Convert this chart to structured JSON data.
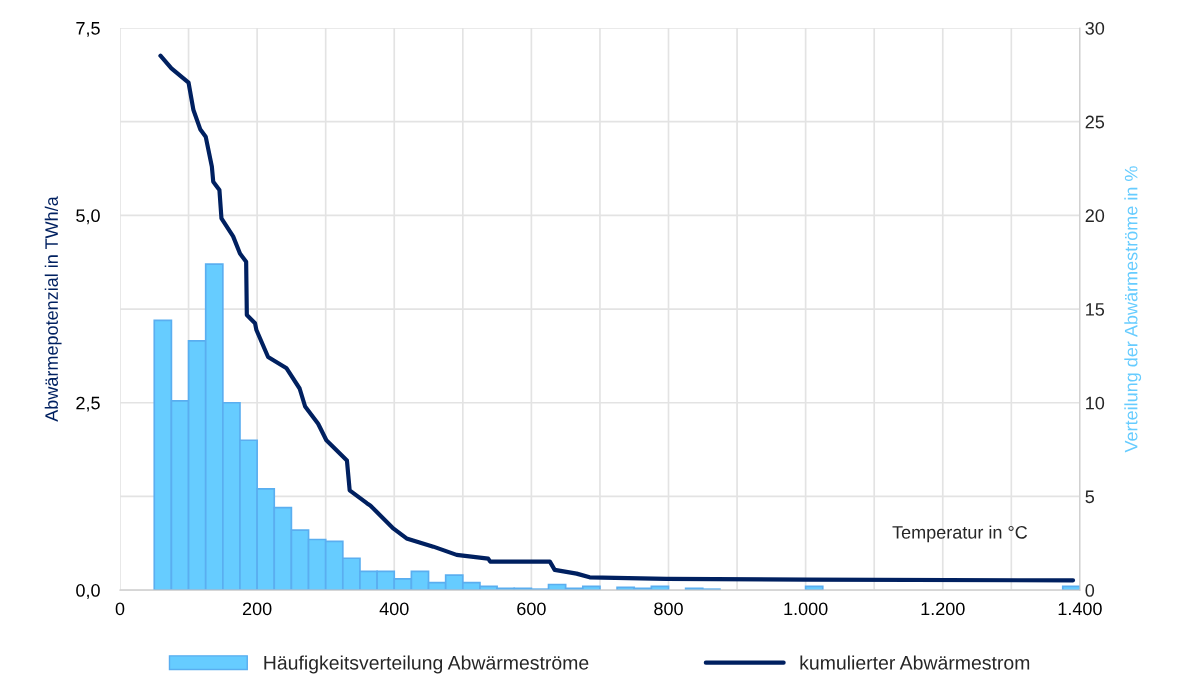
{
  "chart_data": {
    "type": "histogram",
    "ylabel": "Abwärmepotenzial in TWh/a",
    "y2label": "Verteilung der Abwärmeströme in %",
    "xlabel": "Temperatur in °C",
    "xlim": [
      0,
      1400
    ],
    "xticks": [
      0,
      {
        "value": 100,
        "label": null
      },
      200,
      {
        "value": 300,
        "label": null
      },
      400,
      {
        "value": 500,
        "label": null
      },
      600,
      {
        "value": 700,
        "label": null
      },
      800,
      {
        "value": 900,
        "label": null
      },
      {
        "value": 1000,
        "label": "1.000"
      },
      {
        "value": 1100,
        "label": null
      },
      {
        "value": 1200,
        "label": "1.200"
      },
      {
        "value": 1300,
        "label": null
      },
      {
        "value": 1400,
        "label": "1.400"
      }
    ],
    "ylim": [
      0,
      7.5
    ],
    "yticks": [
      {
        "value": 0,
        "label": "0,0"
      },
      {
        "value": 2.5,
        "label": "2,5"
      },
      {
        "value": 5,
        "label": "5,0"
      },
      {
        "value": 7.5,
        "label": "7,5"
      }
    ],
    "y2lim": [
      0,
      30
    ],
    "y2ticks": [
      0,
      5,
      10,
      15,
      20,
      25,
      30
    ],
    "grid": true,
    "legend": "bottom",
    "series": [
      {
        "name": "Häufigkeitsverteilung Abwärmeströme",
        "axis": "y2",
        "color": "#66ccff",
        "bins": [
          50,
          75,
          100,
          125,
          150,
          175,
          200,
          225,
          250,
          275,
          300,
          325,
          350,
          375,
          400,
          425,
          450,
          475,
          500,
          525,
          550,
          575,
          600,
          625,
          650,
          675,
          700,
          725,
          750,
          775,
          800,
          825,
          850,
          875,
          900,
          925,
          950,
          975,
          1000,
          1025,
          1050,
          1075,
          1100,
          1125,
          1150,
          1175,
          1200,
          1225,
          1250,
          1275,
          1300,
          1325,
          1350,
          1375,
          1400
        ],
        "values": [
          14.4,
          10.1,
          13.3,
          17.4,
          10.0,
          8.0,
          5.4,
          4.4,
          3.2,
          2.7,
          2.6,
          1.7,
          1.0,
          1.0,
          0.6,
          1.0,
          0.4,
          0.8,
          0.4,
          0.2,
          0.1,
          0.1,
          0.05,
          0.3,
          0.1,
          0.2,
          0,
          0.15,
          0.1,
          0.2,
          0,
          0.1,
          0.05,
          0,
          0,
          0,
          0,
          0,
          0.2,
          0,
          0,
          0,
          0,
          0,
          0,
          0,
          0,
          0,
          0,
          0,
          0,
          0,
          0,
          0.2
        ]
      },
      {
        "name": "kumulierter Abwärmestrom",
        "type": "line",
        "axis": "y",
        "color": "#002060",
        "x": [
          59,
          75,
          100,
          107,
          117,
          125,
          134,
          136,
          145,
          148,
          165,
          175,
          184,
          185,
          197,
          199,
          216,
          243,
          262,
          270,
          289,
          301,
          331,
          335,
          360,
          365,
          399,
          418,
          457,
          491,
          537,
          540,
          627,
          634,
          666,
          685,
          797,
          1000,
          1390
        ],
        "values": [
          7.13,
          6.96,
          6.77,
          6.41,
          6.15,
          6.05,
          5.65,
          5.45,
          5.34,
          4.96,
          4.72,
          4.49,
          4.38,
          3.67,
          3.56,
          3.47,
          3.11,
          2.96,
          2.69,
          2.45,
          2.22,
          2.0,
          1.73,
          1.33,
          1.16,
          1.13,
          0.82,
          0.69,
          0.58,
          0.47,
          0.42,
          0.38,
          0.38,
          0.27,
          0.22,
          0.17,
          0.15,
          0.14,
          0.13
        ]
      }
    ]
  }
}
